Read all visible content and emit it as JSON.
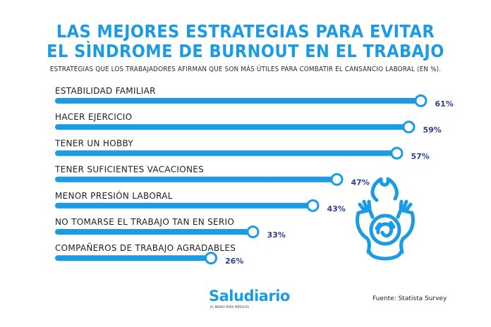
{
  "header": {
    "title_line1": "LAS MEJORES ESTRATEGIAS PARA EVITAR",
    "title_line2": "EL SÌNDROME DE BURNOUT EN EL TRABAJO",
    "subtitle": "ESTRATEGIAS QUE LOS TRABAJADORES AFIRMAN QUE SON MÁS ÚTILES PARA COMBATIR EL CANSANCIO LABORAL (EN %)."
  },
  "chart_data": {
    "type": "bar",
    "orientation": "horizontal",
    "categories": [
      "ESTABILIDAD FAMILIAR",
      "HACER EJERCICIO",
      "TENER UN HOBBY",
      "TENER SUFICIENTES VACACIONES",
      "MENOR PRESIÓN LABORAL",
      "NO TOMARSE EL TRABAJO TAN EN SERIO",
      "COMPAÑEROS DE TRABAJO AGRADABLES"
    ],
    "values": [
      61,
      59,
      57,
      47,
      43,
      33,
      26
    ],
    "value_labels": [
      "61%",
      "59%",
      "57%",
      "47%",
      "43%",
      "33%",
      "26%"
    ],
    "unit": "%",
    "xlim": [
      0,
      65
    ],
    "grid": false,
    "legend": "none"
  },
  "colors": {
    "accent": "#1a9be3",
    "value_text": "#2c3f8f",
    "text": "#1e1e1e"
  },
  "icons": {
    "burnout": "burnout-person-flame-icon"
  },
  "footer": {
    "brand": "Saludiario",
    "brand_tagline": "EL MEDIO PARA MÉDICOS",
    "source": "Fuente: Statista Survey"
  }
}
